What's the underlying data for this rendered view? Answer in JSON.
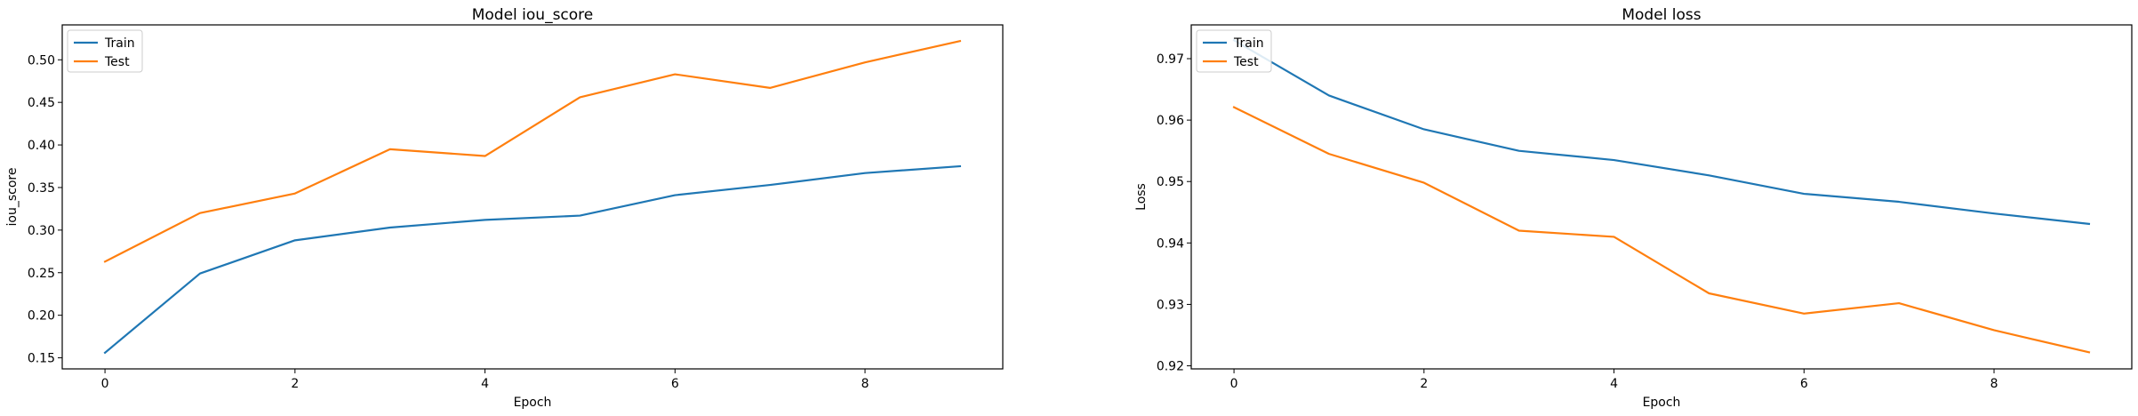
{
  "chart_data": [
    {
      "type": "line",
      "title": "Model iou_score",
      "xlabel": "Epoch",
      "ylabel": "iou_score",
      "x": [
        0,
        1,
        2,
        3,
        4,
        5,
        6,
        7,
        8,
        9
      ],
      "xlim": [
        -0.45,
        9.45
      ],
      "ylim": [
        0.137,
        0.541
      ],
      "xticks": [
        0,
        2,
        4,
        6,
        8
      ],
      "yticks": [
        0.15,
        0.2,
        0.25,
        0.3,
        0.35,
        0.4,
        0.45,
        0.5
      ],
      "ytick_labels": [
        "0.15",
        "0.20",
        "0.25",
        "0.30",
        "0.35",
        "0.40",
        "0.45",
        "0.50"
      ],
      "legend_loc": "upper left",
      "grid": false,
      "series": [
        {
          "name": "Train",
          "color": "#1f77b4",
          "values": [
            0.156,
            0.249,
            0.288,
            0.303,
            0.312,
            0.317,
            0.341,
            0.353,
            0.367,
            0.375
          ]
        },
        {
          "name": "Test",
          "color": "#ff7f0e",
          "values": [
            0.263,
            0.32,
            0.343,
            0.395,
            0.387,
            0.456,
            0.483,
            0.467,
            0.497,
            0.522
          ]
        }
      ]
    },
    {
      "type": "line",
      "title": "Model loss",
      "xlabel": "Epoch",
      "ylabel": "Loss",
      "x": [
        0,
        1,
        2,
        3,
        4,
        5,
        6,
        7,
        8,
        9
      ],
      "xlim": [
        -0.45,
        9.45
      ],
      "ylim": [
        0.9195,
        0.9755
      ],
      "xticks": [
        0,
        2,
        4,
        6,
        8
      ],
      "yticks": [
        0.92,
        0.93,
        0.94,
        0.95,
        0.96,
        0.97
      ],
      "ytick_labels": [
        "0.92",
        "0.93",
        "0.94",
        "0.95",
        "0.96",
        "0.97"
      ],
      "legend_loc": "upper left",
      "grid": false,
      "series": [
        {
          "name": "Train",
          "color": "#1f77b4",
          "values": [
            0.973,
            0.964,
            0.9585,
            0.955,
            0.9535,
            0.951,
            0.948,
            0.9467,
            0.9448,
            0.9431
          ]
        },
        {
          "name": "Test",
          "color": "#ff7f0e",
          "values": [
            0.9621,
            0.9545,
            0.9498,
            0.942,
            0.941,
            0.9318,
            0.9285,
            0.9302,
            0.9258,
            0.9222
          ]
        }
      ]
    }
  ]
}
